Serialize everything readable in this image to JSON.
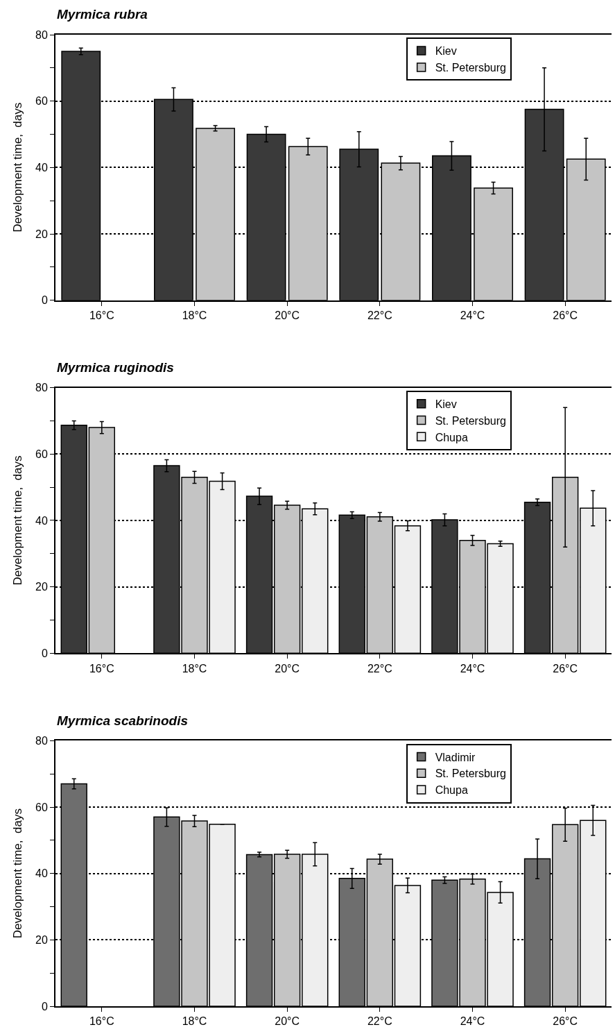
{
  "chart_data": [
    {
      "type": "bar",
      "title": "Myrmica rubra",
      "ylabel": "Development time,  days",
      "categories": [
        "16°C",
        "18°C",
        "20°C",
        "22°C",
        "24°C",
        "26°C"
      ],
      "ylim": [
        0,
        80
      ],
      "yticks": [
        0,
        {
          "value": 10,
          "label": null
        },
        20,
        {
          "value": 30,
          "label": null
        },
        40,
        {
          "value": 50,
          "label": null
        },
        60,
        {
          "value": 70,
          "label": null
        },
        80
      ],
      "grid": "y",
      "legend": "top right",
      "series": [
        {
          "name": "Kiev",
          "color": "#3a3a3a",
          "values": [
            75,
            60.5,
            50,
            45.5,
            43.5,
            57.5
          ],
          "errors": [
            1,
            3.5,
            2.3,
            5.3,
            4.3,
            12.5
          ]
        },
        {
          "name": "St. Petersburg",
          "color": "#c4c4c4",
          "values": [
            null,
            51.8,
            46.3,
            41.3,
            33.8,
            42.5
          ],
          "errors": [
            null,
            0.8,
            2.5,
            2,
            1.8,
            6.3
          ]
        }
      ]
    },
    {
      "type": "bar",
      "title": "Myrmica ruginodis",
      "ylabel": "Development time,  days",
      "categories": [
        "16°C",
        "18°C",
        "20°C",
        "22°C",
        "24°C",
        "26°C"
      ],
      "ylim": [
        0,
        80
      ],
      "yticks": [
        0,
        {
          "value": 10,
          "label": null
        },
        20,
        {
          "value": 30,
          "label": null
        },
        40,
        {
          "value": 50,
          "label": null
        },
        60,
        {
          "value": 70,
          "label": null
        },
        80
      ],
      "grid": "y",
      "legend": "top right",
      "series": [
        {
          "name": "Kiev",
          "color": "#3a3a3a",
          "values": [
            68.7,
            56.5,
            47.3,
            41.6,
            40.2,
            45.5
          ],
          "errors": [
            1.3,
            1.8,
            2.5,
            1,
            1.8,
            1
          ]
        },
        {
          "name": "St. Petersburg",
          "color": "#c4c4c4",
          "values": [
            68,
            53,
            44.6,
            41.1,
            34,
            53
          ],
          "errors": [
            1.8,
            1.8,
            1.2,
            1.3,
            1.5,
            21
          ]
        },
        {
          "name": "Chupa",
          "color": "#eeeeee",
          "values": [
            null,
            51.8,
            43.5,
            38.4,
            33,
            43.7
          ],
          "errors": [
            null,
            2.5,
            1.8,
            1.5,
            0.8,
            5.3
          ]
        }
      ]
    },
    {
      "type": "bar",
      "title": "Myrmica scabrinodis",
      "ylabel": "Development time,  days",
      "categories": [
        "16°C",
        "18°C",
        "20°C",
        "22°C",
        "24°C",
        "26°C"
      ],
      "ylim": [
        0,
        80
      ],
      "yticks": [
        0,
        {
          "value": 10,
          "label": null
        },
        20,
        {
          "value": 30,
          "label": null
        },
        40,
        {
          "value": 50,
          "label": null
        },
        60,
        {
          "value": 70,
          "label": null
        },
        80
      ],
      "grid": "y",
      "legend": "top right",
      "series": [
        {
          "name": "Vladimir",
          "color": "#6e6e6e",
          "values": [
            67,
            57,
            45.7,
            38.5,
            38,
            44.4
          ],
          "errors": [
            1.5,
            2.8,
            0.7,
            3,
            1,
            6
          ]
        },
        {
          "name": "St. Petersburg",
          "color": "#c4c4c4",
          "values": [
            null,
            55.8,
            45.8,
            44.3,
            38.3,
            54.7
          ],
          "errors": [
            null,
            1.7,
            1.2,
            1.5,
            1.5,
            5
          ]
        },
        {
          "name": "Chupa",
          "color": "#eeeeee",
          "values": [
            null,
            54.8,
            45.8,
            36.4,
            34.3,
            56
          ],
          "errors": [
            null,
            null,
            3.5,
            2.2,
            3.2,
            4.5
          ]
        }
      ]
    }
  ]
}
